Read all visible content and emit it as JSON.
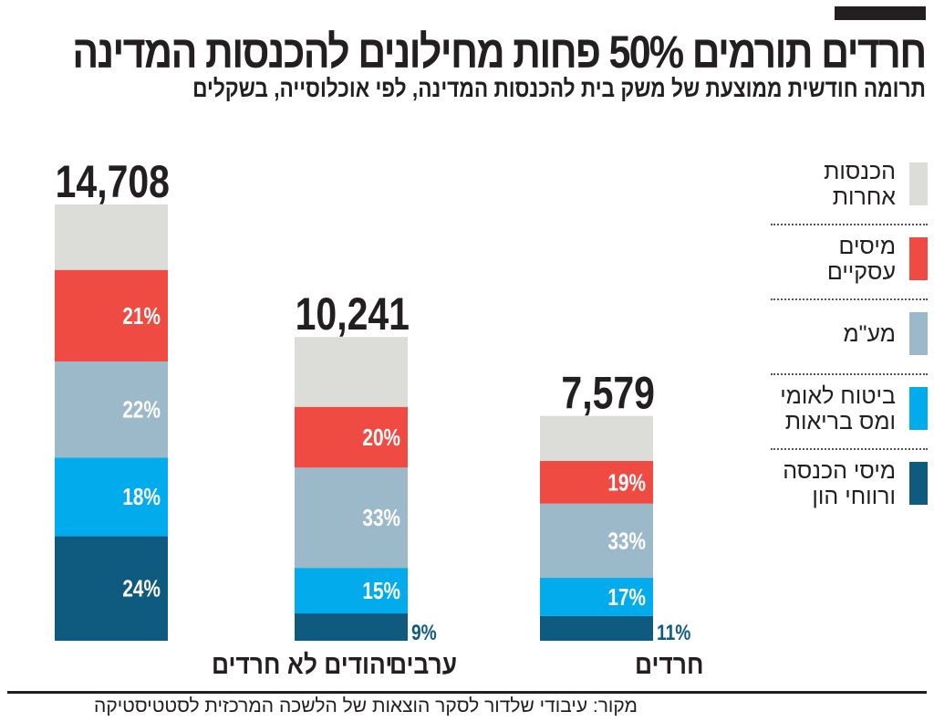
{
  "title": "חרדים תורמים 50% פחות מחילונים להכנסות המדינה",
  "subtitle": "תרומה חודשית ממוצעת של משק בית להכנסות המדינה, לפי אוכלוסייה, בשקלים",
  "source": "מקור: עיבודי שלדור לסקר הוצאות של הלשכה המרכזית לסטטיסטיקה",
  "chart_data": {
    "type": "bar",
    "stacked": true,
    "categories": [
      "יהודים לא חרדים",
      "ערבים",
      "חרדים"
    ],
    "totals": [
      14708,
      10241,
      7579
    ],
    "total_labels": [
      "14,708",
      "10,241",
      "7,579"
    ],
    "series": [
      {
        "name": "מיסי הכנסה ורווחי הון",
        "color": "#0f5a7f",
        "percent": [
          24,
          9,
          11
        ],
        "labels": [
          "24%",
          "9%",
          "11%"
        ]
      },
      {
        "name": "ביטוח לאומי ומס בריאות",
        "color": "#02acec",
        "percent": [
          18,
          15,
          17
        ],
        "labels": [
          "18%",
          "15%",
          "17%"
        ]
      },
      {
        "name": "מע\"מ",
        "color": "#9cb9c9",
        "percent": [
          22,
          33,
          33
        ],
        "labels": [
          "22%",
          "33%",
          "33%"
        ]
      },
      {
        "name": "מיסים עסקיים",
        "color": "#ef4b42",
        "percent": [
          21,
          20,
          19
        ],
        "labels": [
          "21%",
          "20%",
          "19%"
        ]
      },
      {
        "name": "הכנסות אחרות",
        "color": "#dcddd9",
        "percent": [
          15,
          23,
          20
        ],
        "labels": [
          "",
          "",
          ""
        ]
      }
    ],
    "legend_position": "right",
    "grid": false
  }
}
